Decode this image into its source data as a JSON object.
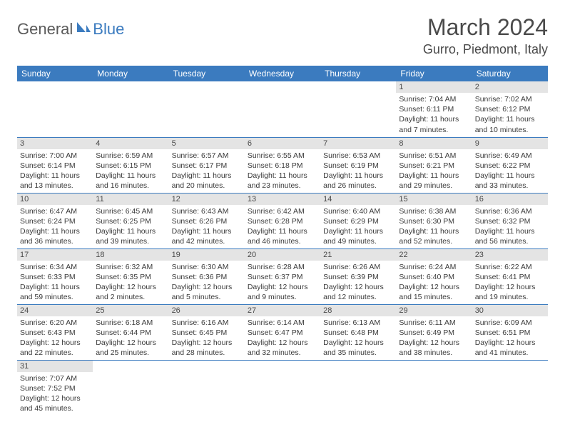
{
  "logo": {
    "text1": "General",
    "text2": "Blue"
  },
  "title": "March 2024",
  "location": "Gurro, Piedmont, Italy",
  "colors": {
    "header_bg": "#3b7bbf",
    "header_text": "#ffffff",
    "daynum_bg": "#e4e4e4",
    "border": "#3b7bbf",
    "logo_gray": "#5a5a5a",
    "logo_blue": "#3b7bbf",
    "title_color": "#4a4a4a",
    "body_text": "#3a3a3a"
  },
  "day_headers": [
    "Sunday",
    "Monday",
    "Tuesday",
    "Wednesday",
    "Thursday",
    "Friday",
    "Saturday"
  ],
  "weeks": [
    [
      null,
      null,
      null,
      null,
      null,
      {
        "n": "1",
        "sunrise": "Sunrise: 7:04 AM",
        "sunset": "Sunset: 6:11 PM",
        "daylight": "Daylight: 11 hours and 7 minutes."
      },
      {
        "n": "2",
        "sunrise": "Sunrise: 7:02 AM",
        "sunset": "Sunset: 6:12 PM",
        "daylight": "Daylight: 11 hours and 10 minutes."
      }
    ],
    [
      {
        "n": "3",
        "sunrise": "Sunrise: 7:00 AM",
        "sunset": "Sunset: 6:14 PM",
        "daylight": "Daylight: 11 hours and 13 minutes."
      },
      {
        "n": "4",
        "sunrise": "Sunrise: 6:59 AM",
        "sunset": "Sunset: 6:15 PM",
        "daylight": "Daylight: 11 hours and 16 minutes."
      },
      {
        "n": "5",
        "sunrise": "Sunrise: 6:57 AM",
        "sunset": "Sunset: 6:17 PM",
        "daylight": "Daylight: 11 hours and 20 minutes."
      },
      {
        "n": "6",
        "sunrise": "Sunrise: 6:55 AM",
        "sunset": "Sunset: 6:18 PM",
        "daylight": "Daylight: 11 hours and 23 minutes."
      },
      {
        "n": "7",
        "sunrise": "Sunrise: 6:53 AM",
        "sunset": "Sunset: 6:19 PM",
        "daylight": "Daylight: 11 hours and 26 minutes."
      },
      {
        "n": "8",
        "sunrise": "Sunrise: 6:51 AM",
        "sunset": "Sunset: 6:21 PM",
        "daylight": "Daylight: 11 hours and 29 minutes."
      },
      {
        "n": "9",
        "sunrise": "Sunrise: 6:49 AM",
        "sunset": "Sunset: 6:22 PM",
        "daylight": "Daylight: 11 hours and 33 minutes."
      }
    ],
    [
      {
        "n": "10",
        "sunrise": "Sunrise: 6:47 AM",
        "sunset": "Sunset: 6:24 PM",
        "daylight": "Daylight: 11 hours and 36 minutes."
      },
      {
        "n": "11",
        "sunrise": "Sunrise: 6:45 AM",
        "sunset": "Sunset: 6:25 PM",
        "daylight": "Daylight: 11 hours and 39 minutes."
      },
      {
        "n": "12",
        "sunrise": "Sunrise: 6:43 AM",
        "sunset": "Sunset: 6:26 PM",
        "daylight": "Daylight: 11 hours and 42 minutes."
      },
      {
        "n": "13",
        "sunrise": "Sunrise: 6:42 AM",
        "sunset": "Sunset: 6:28 PM",
        "daylight": "Daylight: 11 hours and 46 minutes."
      },
      {
        "n": "14",
        "sunrise": "Sunrise: 6:40 AM",
        "sunset": "Sunset: 6:29 PM",
        "daylight": "Daylight: 11 hours and 49 minutes."
      },
      {
        "n": "15",
        "sunrise": "Sunrise: 6:38 AM",
        "sunset": "Sunset: 6:30 PM",
        "daylight": "Daylight: 11 hours and 52 minutes."
      },
      {
        "n": "16",
        "sunrise": "Sunrise: 6:36 AM",
        "sunset": "Sunset: 6:32 PM",
        "daylight": "Daylight: 11 hours and 56 minutes."
      }
    ],
    [
      {
        "n": "17",
        "sunrise": "Sunrise: 6:34 AM",
        "sunset": "Sunset: 6:33 PM",
        "daylight": "Daylight: 11 hours and 59 minutes."
      },
      {
        "n": "18",
        "sunrise": "Sunrise: 6:32 AM",
        "sunset": "Sunset: 6:35 PM",
        "daylight": "Daylight: 12 hours and 2 minutes."
      },
      {
        "n": "19",
        "sunrise": "Sunrise: 6:30 AM",
        "sunset": "Sunset: 6:36 PM",
        "daylight": "Daylight: 12 hours and 5 minutes."
      },
      {
        "n": "20",
        "sunrise": "Sunrise: 6:28 AM",
        "sunset": "Sunset: 6:37 PM",
        "daylight": "Daylight: 12 hours and 9 minutes."
      },
      {
        "n": "21",
        "sunrise": "Sunrise: 6:26 AM",
        "sunset": "Sunset: 6:39 PM",
        "daylight": "Daylight: 12 hours and 12 minutes."
      },
      {
        "n": "22",
        "sunrise": "Sunrise: 6:24 AM",
        "sunset": "Sunset: 6:40 PM",
        "daylight": "Daylight: 12 hours and 15 minutes."
      },
      {
        "n": "23",
        "sunrise": "Sunrise: 6:22 AM",
        "sunset": "Sunset: 6:41 PM",
        "daylight": "Daylight: 12 hours and 19 minutes."
      }
    ],
    [
      {
        "n": "24",
        "sunrise": "Sunrise: 6:20 AM",
        "sunset": "Sunset: 6:43 PM",
        "daylight": "Daylight: 12 hours and 22 minutes."
      },
      {
        "n": "25",
        "sunrise": "Sunrise: 6:18 AM",
        "sunset": "Sunset: 6:44 PM",
        "daylight": "Daylight: 12 hours and 25 minutes."
      },
      {
        "n": "26",
        "sunrise": "Sunrise: 6:16 AM",
        "sunset": "Sunset: 6:45 PM",
        "daylight": "Daylight: 12 hours and 28 minutes."
      },
      {
        "n": "27",
        "sunrise": "Sunrise: 6:14 AM",
        "sunset": "Sunset: 6:47 PM",
        "daylight": "Daylight: 12 hours and 32 minutes."
      },
      {
        "n": "28",
        "sunrise": "Sunrise: 6:13 AM",
        "sunset": "Sunset: 6:48 PM",
        "daylight": "Daylight: 12 hours and 35 minutes."
      },
      {
        "n": "29",
        "sunrise": "Sunrise: 6:11 AM",
        "sunset": "Sunset: 6:49 PM",
        "daylight": "Daylight: 12 hours and 38 minutes."
      },
      {
        "n": "30",
        "sunrise": "Sunrise: 6:09 AM",
        "sunset": "Sunset: 6:51 PM",
        "daylight": "Daylight: 12 hours and 41 minutes."
      }
    ],
    [
      {
        "n": "31",
        "sunrise": "Sunrise: 7:07 AM",
        "sunset": "Sunset: 7:52 PM",
        "daylight": "Daylight: 12 hours and 45 minutes."
      },
      null,
      null,
      null,
      null,
      null,
      null
    ]
  ]
}
